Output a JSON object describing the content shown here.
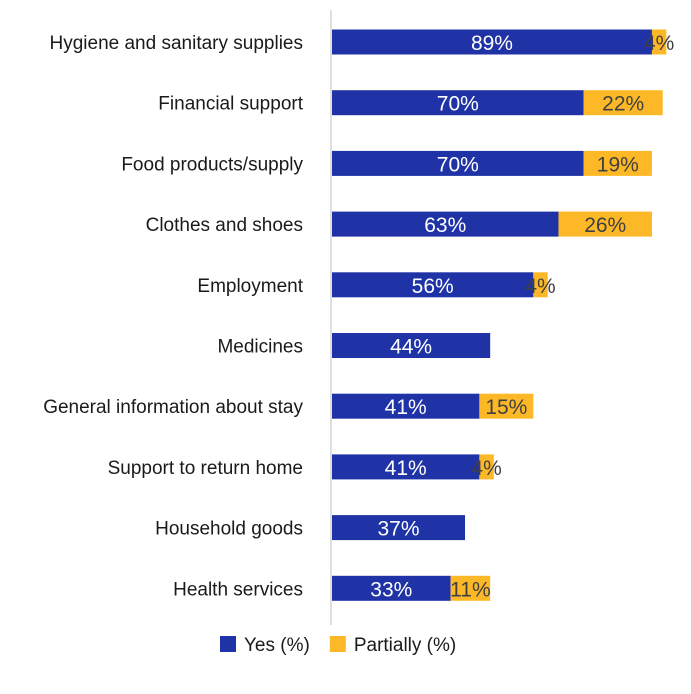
{
  "chart_data": {
    "type": "bar",
    "orientation": "horizontal",
    "stacked": true,
    "categories": [
      "Hygiene and sanitary supplies",
      "Financial support",
      "Food products/supply",
      "Clothes and shoes",
      "Employment",
      "Medicines",
      "General information about stay",
      "Support to return home",
      "Household goods",
      "Health services"
    ],
    "series": [
      {
        "name": "Yes (%)",
        "color": "#1f33a6",
        "values": [
          89,
          70,
          70,
          63,
          56,
          44,
          41,
          41,
          37,
          33
        ],
        "labels": [
          "89%",
          "70%",
          "70%",
          "63%",
          "56%",
          "44%",
          "41%",
          "41%",
          "37%",
          "33%"
        ]
      },
      {
        "name": "Partially (%)",
        "color": "#fdb827",
        "values": [
          4,
          22,
          19,
          26,
          4,
          null,
          15,
          4,
          null,
          11
        ],
        "labels": [
          "4%",
          "22%",
          "19%",
          "26%",
          "4%",
          "",
          "15%",
          "4%",
          "",
          "11%"
        ]
      }
    ],
    "title": "",
    "xlabel": "",
    "ylabel": "",
    "grid": false,
    "legend_position": "bottom-center",
    "axis_color": "#bfbfbf"
  }
}
